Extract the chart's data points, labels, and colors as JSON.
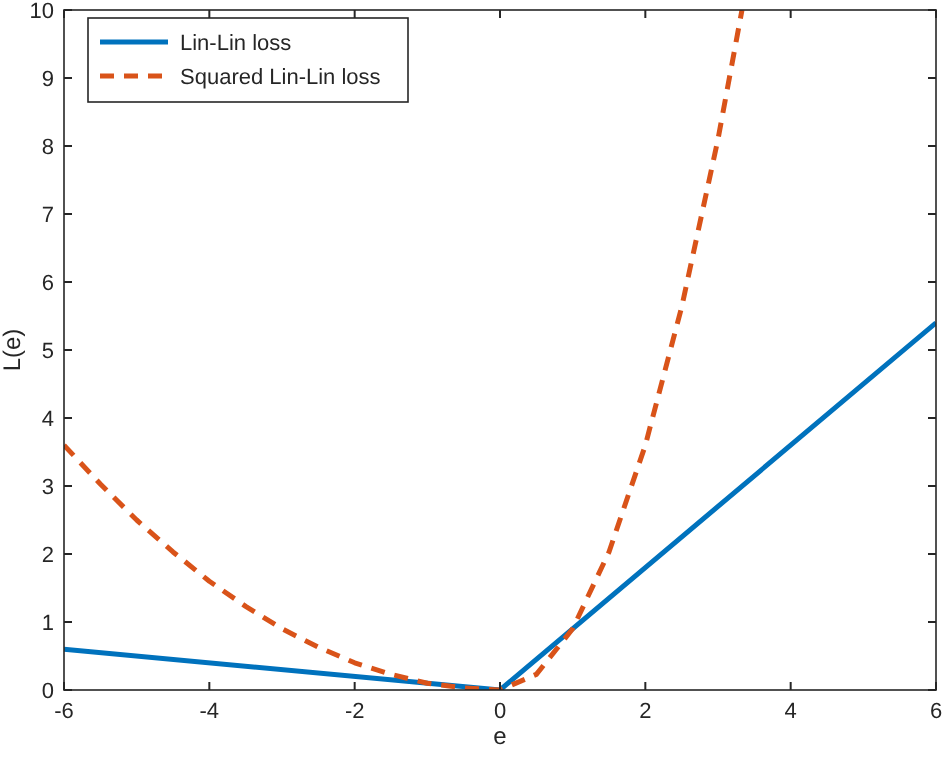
{
  "chart_data": {
    "type": "line",
    "xlabel": "e",
    "ylabel": "L(e)",
    "xlim": [
      -6,
      6
    ],
    "ylim": [
      0,
      10
    ],
    "xticks": [
      -6,
      -4,
      -2,
      0,
      2,
      4,
      6
    ],
    "yticks": [
      0,
      1,
      2,
      3,
      4,
      5,
      6,
      7,
      8,
      9,
      10
    ],
    "legend": "top left",
    "grid": false,
    "series": [
      {
        "name": "Lin-Lin loss",
        "color": "#0072bd",
        "line_style": "solid",
        "x": [
          -6,
          0,
          6
        ],
        "values": [
          0.6,
          0,
          5.4
        ]
      },
      {
        "name": "Squared Lin-Lin loss",
        "color": "#d95319",
        "line_style": "dashed",
        "x": [
          -6,
          -5.5,
          -5,
          -4.5,
          -4,
          -3.5,
          -3,
          -2.5,
          -2,
          -1.5,
          -1,
          -0.5,
          0,
          0.5,
          1,
          1.5,
          2,
          2.5,
          3,
          3.33
        ],
        "values": [
          3.6,
          3.03,
          2.5,
          2.03,
          1.6,
          1.23,
          0.9,
          0.63,
          0.4,
          0.23,
          0.1,
          0.03,
          0,
          0.23,
          0.9,
          2.03,
          3.6,
          5.63,
          8.1,
          10
        ]
      }
    ]
  }
}
